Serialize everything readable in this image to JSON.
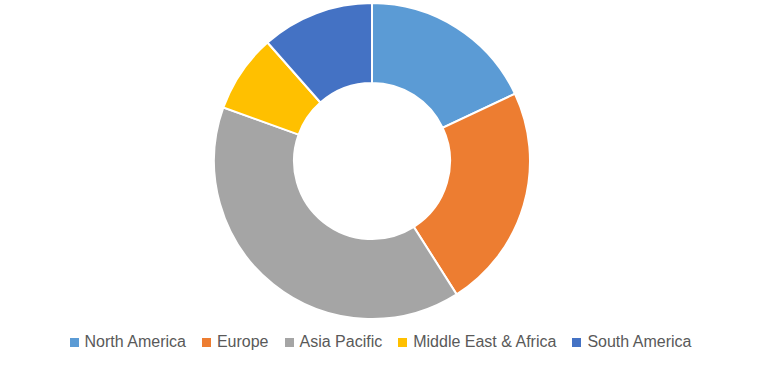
{
  "chart_data": {
    "type": "donut",
    "categories": [
      "North America",
      "Europe",
      "Asia Pacific",
      "Middle East & Africa",
      "South America"
    ],
    "values": [
      18,
      23,
      39.5,
      8,
      11.5
    ],
    "colors": [
      "#5b9bd5",
      "#ed7d31",
      "#a5a5a5",
      "#ffc000",
      "#4472c4"
    ],
    "legend": "bottom",
    "data_labels": false
  }
}
